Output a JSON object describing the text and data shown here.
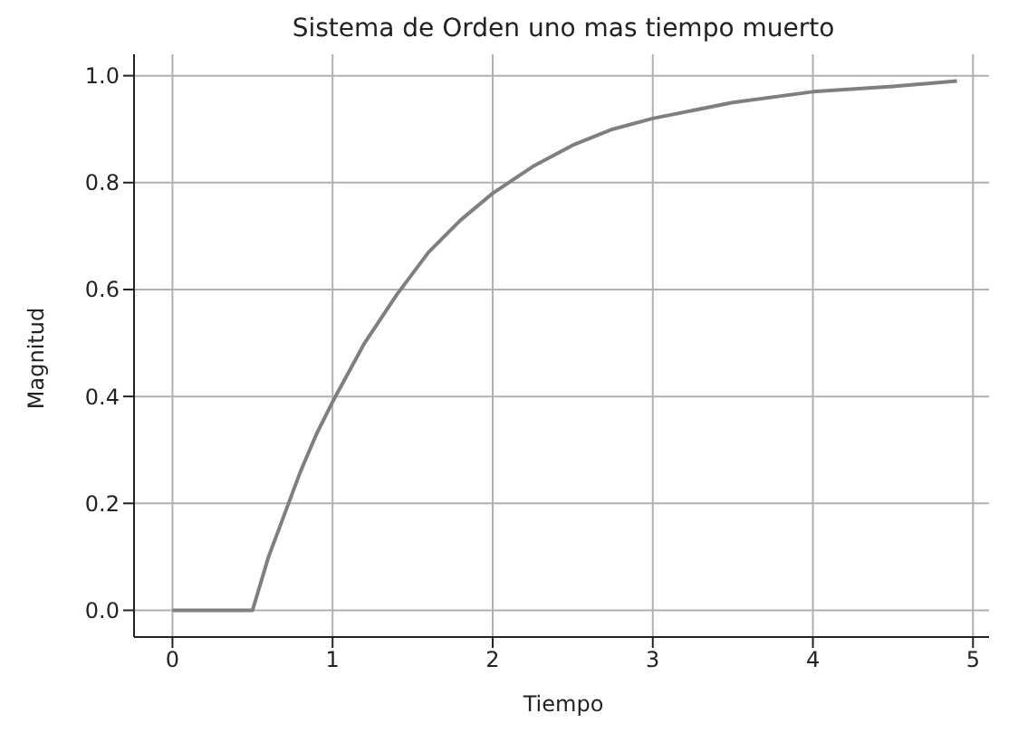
{
  "chart_data": {
    "type": "line",
    "title": "Sistema de Orden uno mas tiempo muerto",
    "xlabel": "Tiempo",
    "ylabel": "Magnitud",
    "x": [
      0,
      0.5,
      0.6,
      0.7,
      0.8,
      0.9,
      1.0,
      1.2,
      1.4,
      1.6,
      1.8,
      2.0,
      2.25,
      2.5,
      2.75,
      3.0,
      3.5,
      4.0,
      4.5,
      4.9
    ],
    "series": [
      {
        "color": "#7f7f7f",
        "values": [
          0,
          0,
          0.1,
          0.18,
          0.26,
          0.33,
          0.39,
          0.5,
          0.59,
          0.67,
          0.73,
          0.78,
          0.83,
          0.87,
          0.9,
          0.92,
          0.95,
          0.97,
          0.98,
          0.99
        ]
      }
    ],
    "xlim": [
      -0.24,
      5.1
    ],
    "xticks": [
      0,
      1,
      2,
      3,
      4,
      5
    ],
    "ylim": [
      -0.05,
      1.04
    ],
    "yticks": [
      {
        "value": 0,
        "label": "0.0"
      },
      {
        "value": 0.2,
        "label": "0.2"
      },
      {
        "value": 0.4,
        "label": "0.4"
      },
      {
        "value": 0.6,
        "label": "0.6"
      },
      {
        "value": 0.8,
        "label": "0.8"
      },
      {
        "value": 1,
        "label": "1.0"
      }
    ],
    "grid": true,
    "marker": "none",
    "line_style": "solid"
  }
}
